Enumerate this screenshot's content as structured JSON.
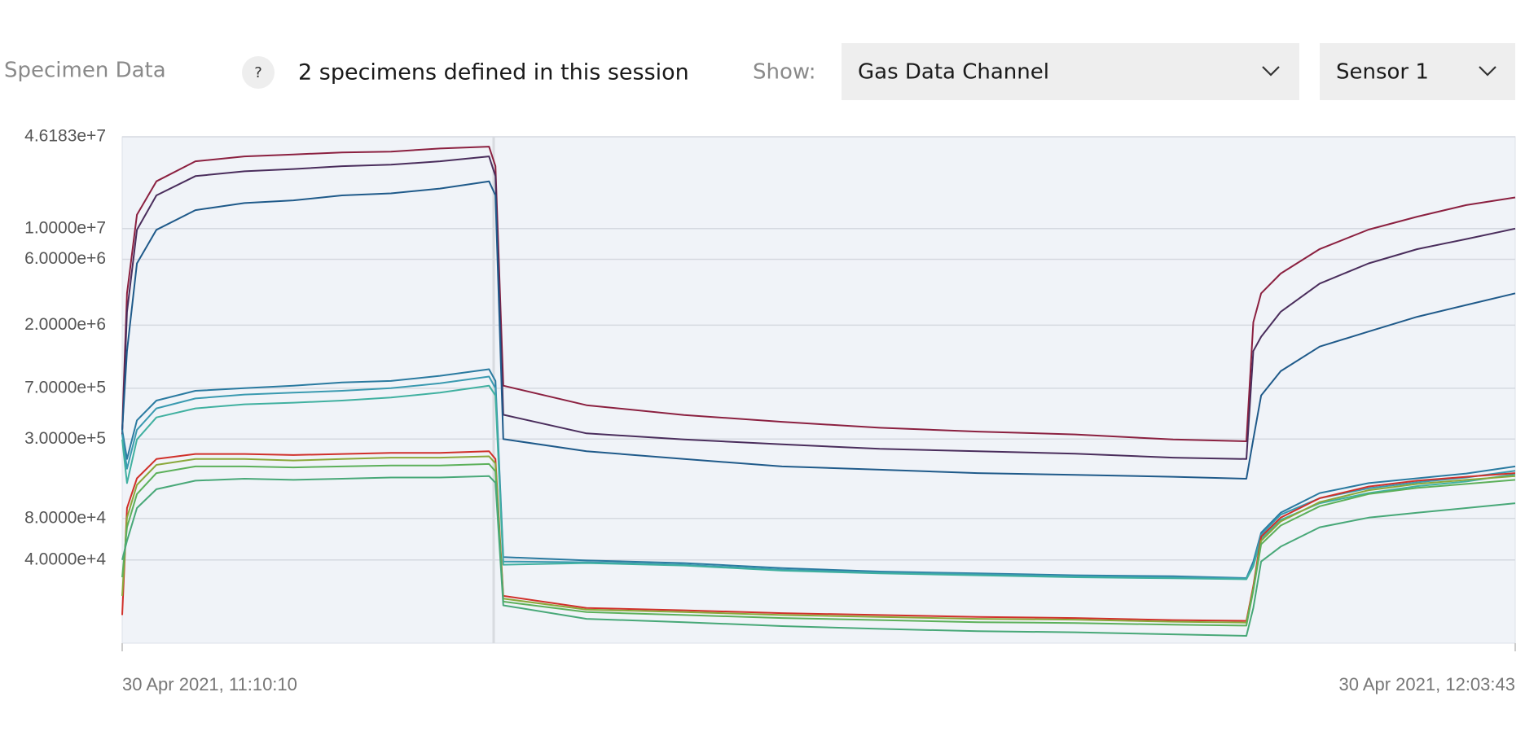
{
  "header": {
    "section_title": "Specimen Data",
    "help": "?",
    "info": "2 specimens defined in this session",
    "show_label": "Show:",
    "channel": "Gas Data Channel",
    "sensor": "Sensor 1"
  },
  "chart_data": {
    "type": "line",
    "log_y": true,
    "grid": true,
    "x": [
      "30 Apr 2021, 11:10:10",
      "30 Apr 2021, 11:10:21",
      "30 Apr 2021, 11:10:44",
      "30 Apr 2021, 11:11:29",
      "30 Apr 2021, 11:12:59",
      "30 Apr 2021, 11:14:52",
      "30 Apr 2021, 11:16:45",
      "30 Apr 2021, 11:18:37",
      "30 Apr 2021, 11:20:30",
      "30 Apr 2021, 11:22:23",
      "30 Apr 2021, 11:24:16",
      "30 Apr 2021, 11:24:31",
      "30 Apr 2021, 11:24:49",
      "30 Apr 2021, 11:28:01",
      "30 Apr 2021, 11:31:46",
      "30 Apr 2021, 11:35:32",
      "30 Apr 2021, 11:39:17",
      "30 Apr 2021, 11:43:03",
      "30 Apr 2021, 11:46:48",
      "30 Apr 2021, 11:50:34",
      "30 Apr 2021, 11:53:23",
      "30 Apr 2021, 11:53:39",
      "30 Apr 2021, 11:53:57",
      "30 Apr 2021, 11:54:42",
      "30 Apr 2021, 11:56:12",
      "30 Apr 2021, 11:58:05",
      "30 Apr 2021, 11:59:57",
      "30 Apr 2021, 12:01:50",
      "30 Apr 2021, 12:03:43"
    ],
    "xlim": [
      "30 Apr 2021, 11:10:10",
      "30 Apr 2021, 12:03:43"
    ],
    "xticks": [
      "30 Apr 2021, 11:10:10",
      "30 Apr 2021, 12:03:43"
    ],
    "ylim": [
      10000,
      46183000
    ],
    "yticks": [
      {
        "value": 46183000,
        "label": "4.6183e+7"
      },
      {
        "value": 10000000,
        "label": "1.0000e+7"
      },
      {
        "value": 6000000,
        "label": "6.0000e+6"
      },
      {
        "value": 2000000,
        "label": "2.0000e+6"
      },
      {
        "value": 700000,
        "label": "7.0000e+5"
      },
      {
        "value": 300000,
        "label": "3.0000e+5"
      },
      {
        "value": 80000,
        "label": "8.0000e+4"
      },
      {
        "value": 40000,
        "label": "4.0000e+4"
      }
    ],
    "series": [
      {
        "color": "#8b2040",
        "values": [
          350000,
          3400000,
          12600000,
          22000000,
          30700000,
          33300000,
          34400000,
          35600000,
          36100000,
          38000000,
          39200000,
          28300000,
          730000,
          527000,
          448000,
          400000,
          362000,
          340000,
          324000,
          298000,
          289000,
          2100000,
          3400000,
          4730000,
          7110000,
          9840000,
          12200000,
          14800000,
          16800000
        ]
      },
      {
        "color": "#4a2d5c",
        "values": [
          324000,
          2500000,
          9800000,
          17400000,
          24000000,
          26000000,
          27000000,
          28300000,
          29000000,
          30700000,
          33300000,
          24000000,
          450000,
          330000,
          298000,
          275000,
          255000,
          245000,
          235000,
          220000,
          215000,
          1300000,
          1650000,
          2500000,
          4000000,
          5600000,
          7100000,
          8400000,
          10000000
        ]
      },
      {
        "color": "#1f5a8a",
        "values": [
          350000,
          1300000,
          5600000,
          9800000,
          13600000,
          15300000,
          16000000,
          17400000,
          18000000,
          19500000,
          22000000,
          17400000,
          300000,
          245000,
          215000,
          190000,
          180000,
          170000,
          165000,
          160000,
          155000,
          300000,
          620000,
          930000,
          1400000,
          1800000,
          2300000,
          2800000,
          3400000
        ]
      },
      {
        "color": "#2a7aa0",
        "values": [
          350000,
          215000,
          410000,
          570000,
          670000,
          700000,
          730000,
          770000,
          790000,
          860000,
          960000,
          790000,
          42000,
          39700,
          38000,
          35000,
          33000,
          32000,
          31000,
          30500,
          29600,
          39000,
          63000,
          88000,
          122000,
          144000,
          156000,
          169000,
          190000
        ]
      },
      {
        "color": "#3a9ab0",
        "values": [
          324000,
          183000,
          350000,
          500000,
          590000,
          630000,
          650000,
          670000,
          700000,
          760000,
          850000,
          700000,
          39000,
          38500,
          37000,
          34000,
          32500,
          31500,
          30600,
          30000,
          29500,
          37000,
          61000,
          85000,
          112000,
          132000,
          146000,
          158000,
          177000
        ]
      },
      {
        "color": "#40b0a0",
        "values": [
          298000,
          144000,
          298000,
          430000,
          500000,
          535000,
          550000,
          570000,
          600000,
          650000,
          730000,
          620000,
          37000,
          38000,
          36500,
          33500,
          32000,
          31000,
          30000,
          29500,
          29000,
          36000,
          57000,
          78000,
          103000,
          122000,
          137000,
          148000,
          167000
        ]
      },
      {
        "color": "#d0302a",
        "values": [
          16000,
          95000,
          156000,
          215000,
          234000,
          234000,
          230000,
          234000,
          238000,
          238000,
          245000,
          215000,
          22000,
          18000,
          17300,
          16500,
          16000,
          15500,
          15200,
          14700,
          14500,
          26000,
          59000,
          81000,
          112000,
          136000,
          150000,
          160000,
          170000
        ]
      },
      {
        "color": "#8aa83a",
        "values": [
          22000,
          81000,
          140000,
          195000,
          215000,
          215000,
          210000,
          215000,
          220000,
          220000,
          225000,
          200000,
          21000,
          17500,
          16800,
          16000,
          15500,
          15000,
          14800,
          14300,
          14100,
          25000,
          55000,
          76000,
          105000,
          128000,
          142000,
          152000,
          162000
        ]
      },
      {
        "color": "#5cb05a",
        "values": [
          30000,
          69000,
          120000,
          170000,
          190000,
          190000,
          187000,
          190000,
          193000,
          193000,
          198000,
          175000,
          20000,
          16800,
          16000,
          15200,
          14700,
          14200,
          14000,
          13600,
          13400,
          24000,
          52000,
          71000,
          98000,
          120000,
          133000,
          142000,
          152000
        ]
      },
      {
        "color": "#48a878",
        "values": [
          40000,
          55000,
          95000,
          130000,
          150000,
          155000,
          152000,
          155000,
          158000,
          158000,
          162000,
          145000,
          18800,
          15000,
          14200,
          13300,
          12700,
          12200,
          12000,
          11600,
          11300,
          18000,
          39000,
          50000,
          69000,
          81000,
          88000,
          95000,
          103000
        ]
      }
    ]
  }
}
